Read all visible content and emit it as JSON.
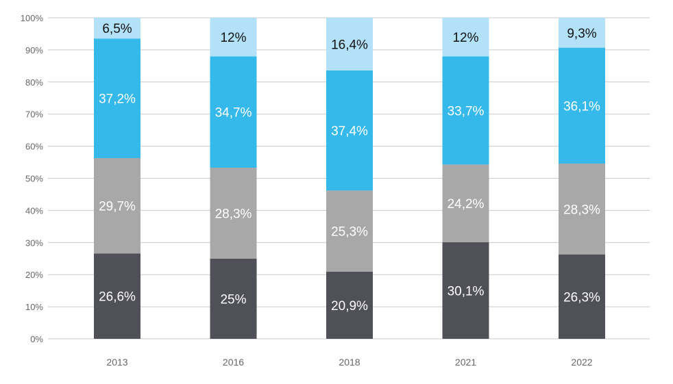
{
  "chart_data": {
    "type": "bar",
    "stacked": true,
    "categories": [
      "2013",
      "2016",
      "2018",
      "2021",
      "2022"
    ],
    "series": [
      {
        "values": [
          26.6,
          25,
          20.9,
          30.1,
          26.3
        ],
        "labels": [
          "26,6%",
          "25%",
          "20,9%",
          "30,1%",
          "26,3%"
        ],
        "color": "#4f5058",
        "label_color": "#ffffff"
      },
      {
        "values": [
          29.7,
          28.3,
          25.3,
          24.2,
          28.3
        ],
        "labels": [
          "29,7%",
          "28,3%",
          "25,3%",
          "24,2%",
          "28,3%"
        ],
        "color": "#a8a8a8",
        "label_color": "#ffffff"
      },
      {
        "values": [
          37.2,
          34.7,
          37.4,
          33.7,
          36.1
        ],
        "labels": [
          "37,2%",
          "34,7%",
          "37,4%",
          "33,7%",
          "36,1%"
        ],
        "color": "#35b8ea",
        "label_color": "#ffffff"
      },
      {
        "values": [
          6.5,
          12,
          16.4,
          12,
          9.3
        ],
        "labels": [
          "6,5%",
          "12%",
          "16,4%",
          "12%",
          "9,3%"
        ],
        "color": "#b3e1f8",
        "label_color": "#111111"
      }
    ],
    "y_ticks": [
      0,
      10,
      20,
      30,
      40,
      50,
      60,
      70,
      80,
      90,
      100
    ],
    "y_tick_labels": [
      "0%",
      "10%",
      "20%",
      "30%",
      "40%",
      "50%",
      "60%",
      "70%",
      "80%",
      "90%",
      "100%"
    ],
    "ylim": [
      0,
      100
    ],
    "grid": true,
    "gridline_color": "#c9c9c9",
    "axis_text_color": "#666666",
    "title": "",
    "xlabel": "",
    "ylabel": ""
  }
}
